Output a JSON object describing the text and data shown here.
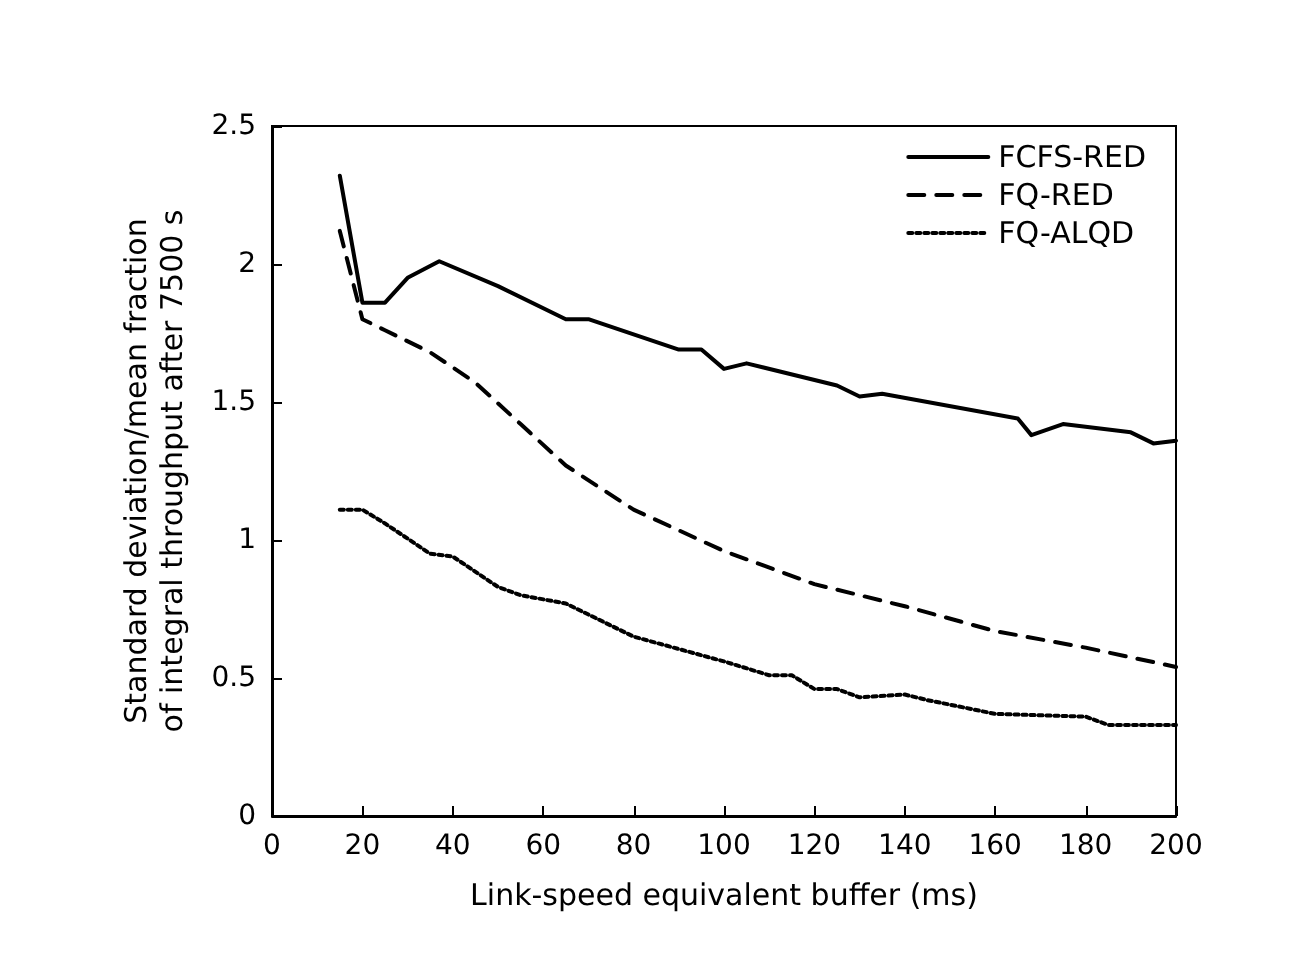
{
  "chart_data": {
    "type": "line",
    "xlabel": "Link-speed equivalent buffer (ms)",
    "ylabel": "Standard deviation/mean fraction\nof integral throughput after 7500 s",
    "xlim": [
      0,
      200
    ],
    "xticks": [
      0,
      20,
      40,
      60,
      80,
      100,
      120,
      140,
      160,
      180,
      200
    ],
    "ylim": [
      0,
      2.5
    ],
    "yticks": [
      0,
      0.5,
      1,
      1.5,
      2,
      2.5
    ],
    "grid": false,
    "legend": "top right",
    "marker": "none",
    "series": [
      {
        "name": "FCFS-RED",
        "color": "#000000",
        "line_style": "solid",
        "x": [
          15,
          20,
          25,
          30,
          37,
          50,
          65,
          70,
          90,
          95,
          100,
          105,
          125,
          130,
          135,
          165,
          168,
          175,
          190,
          195,
          200
        ],
        "values": [
          2.32,
          1.86,
          1.86,
          1.95,
          2.01,
          1.92,
          1.8,
          1.8,
          1.69,
          1.69,
          1.62,
          1.64,
          1.56,
          1.52,
          1.53,
          1.44,
          1.38,
          1.42,
          1.39,
          1.35,
          1.36
        ]
      },
      {
        "name": "FQ-RED",
        "color": "#000000",
        "line_style": "dashed",
        "x": [
          15,
          20,
          25,
          35,
          45,
          55,
          65,
          80,
          100,
          120,
          140,
          160,
          180,
          200
        ],
        "values": [
          2.12,
          1.8,
          1.76,
          1.68,
          1.57,
          1.42,
          1.27,
          1.11,
          0.96,
          0.84,
          0.76,
          0.67,
          0.61,
          0.54
        ]
      },
      {
        "name": "FQ-ALQD",
        "color": "#000000",
        "line_style": "dotted",
        "x": [
          15,
          20,
          25,
          35,
          40,
          50,
          55,
          65,
          80,
          100,
          110,
          115,
          120,
          125,
          130,
          140,
          145,
          160,
          180,
          185,
          200
        ],
        "values": [
          1.11,
          1.11,
          1.06,
          0.95,
          0.94,
          0.83,
          0.8,
          0.77,
          0.65,
          0.56,
          0.51,
          0.51,
          0.46,
          0.46,
          0.43,
          0.44,
          0.42,
          0.37,
          0.36,
          0.33,
          0.33
        ]
      }
    ]
  }
}
